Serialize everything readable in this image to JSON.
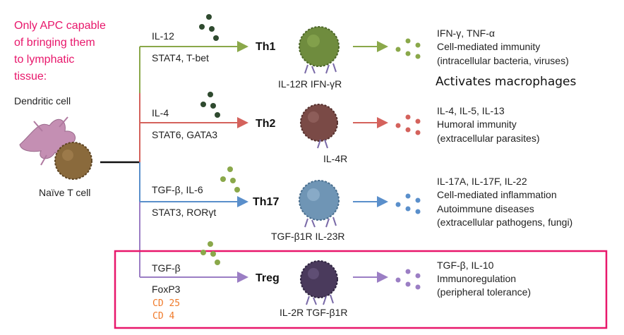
{
  "colors": {
    "annotation": "#e8176b",
    "th1": "#8aa84a",
    "th2": "#d4625c",
    "th17": "#5a8fcb",
    "treg": "#9b7ec4",
    "dendritic": "#c48fb3",
    "naive": "#8a6a3c",
    "handwriting": "#f07a2a"
  },
  "annotation_note": [
    "Only APC capable",
    "of bringing them",
    "to lymphatic",
    "tissue:"
  ],
  "dendritic_label": "Dendritic cell",
  "naive_label": "Naïve T cell",
  "branches": [
    {
      "key": "th1",
      "cytokine": "IL-12",
      "factors": "STAT4, T-bet",
      "subset": "Th1",
      "receptors": "IL-12R   IFN-γR",
      "outputs": [
        "IFN-γ, TNF-α",
        "Cell-mediated immunity",
        "(intracellular bacteria, viruses)"
      ]
    },
    {
      "key": "th2",
      "cytokine": "IL-4",
      "factors": "STAT6, GATA3",
      "subset": "Th2",
      "receptors": "IL-4R",
      "outputs": [
        "IL-4, IL-5, IL-13",
        "Humoral immunity",
        "(extracellular parasites)"
      ]
    },
    {
      "key": "th17",
      "cytokine": "TGF-β, IL-6",
      "factors": "STAT3, RORγt",
      "subset": "Th17",
      "receptors": "TGF-β1R  IL-23R",
      "outputs": [
        "IL-17A, IL-17F, IL-22",
        "Cell-mediated inflammation",
        "Autoimmune diseases",
        "(extracellular pathogens, fungi)"
      ]
    },
    {
      "key": "treg",
      "cytokine": "TGF-β",
      "factors": "FoxP3",
      "subset": "Treg",
      "receptors": "IL-2R   TGF-β1R",
      "outputs": [
        "TGF-β, IL-10",
        "Immunoregulation",
        "(peripheral tolerance)"
      ]
    }
  ],
  "th1_extra_note": "Activates macrophages",
  "treg_handwritten": [
    "CD 25",
    "CD 4"
  ]
}
